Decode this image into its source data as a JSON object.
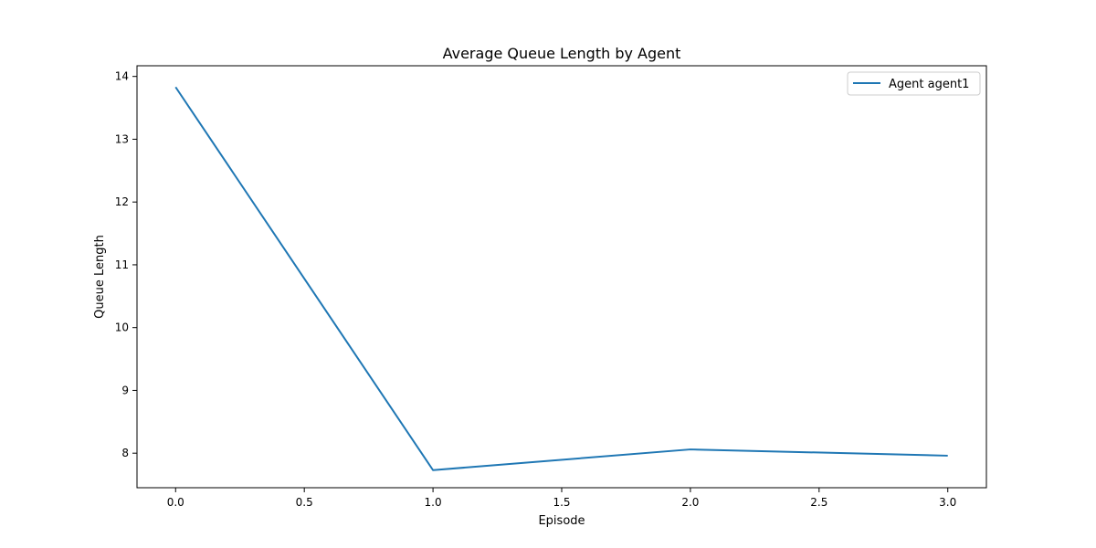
{
  "chart_data": {
    "type": "line",
    "title": "Average Queue Length by Agent",
    "xlabel": "Episode",
    "ylabel": "Queue Length",
    "xlim": [
      -0.15,
      3.15
    ],
    "ylim": [
      7.45,
      14.17
    ],
    "xticks": [
      0.0,
      0.5,
      1.0,
      1.5,
      2.0,
      2.5,
      3.0
    ],
    "xtick_labels": [
      "0.0",
      "0.5",
      "1.0",
      "1.5",
      "2.0",
      "2.5",
      "3.0"
    ],
    "yticks": [
      8,
      9,
      10,
      11,
      12,
      13,
      14
    ],
    "ytick_labels": [
      "8",
      "9",
      "10",
      "11",
      "12",
      "13",
      "14"
    ],
    "grid": false,
    "legend_position": "top-right",
    "series": [
      {
        "name": "Agent agent1",
        "color": "#1f77b4",
        "x": [
          0,
          1,
          2,
          3
        ],
        "y": [
          13.83,
          7.73,
          8.06,
          7.96
        ]
      }
    ]
  }
}
